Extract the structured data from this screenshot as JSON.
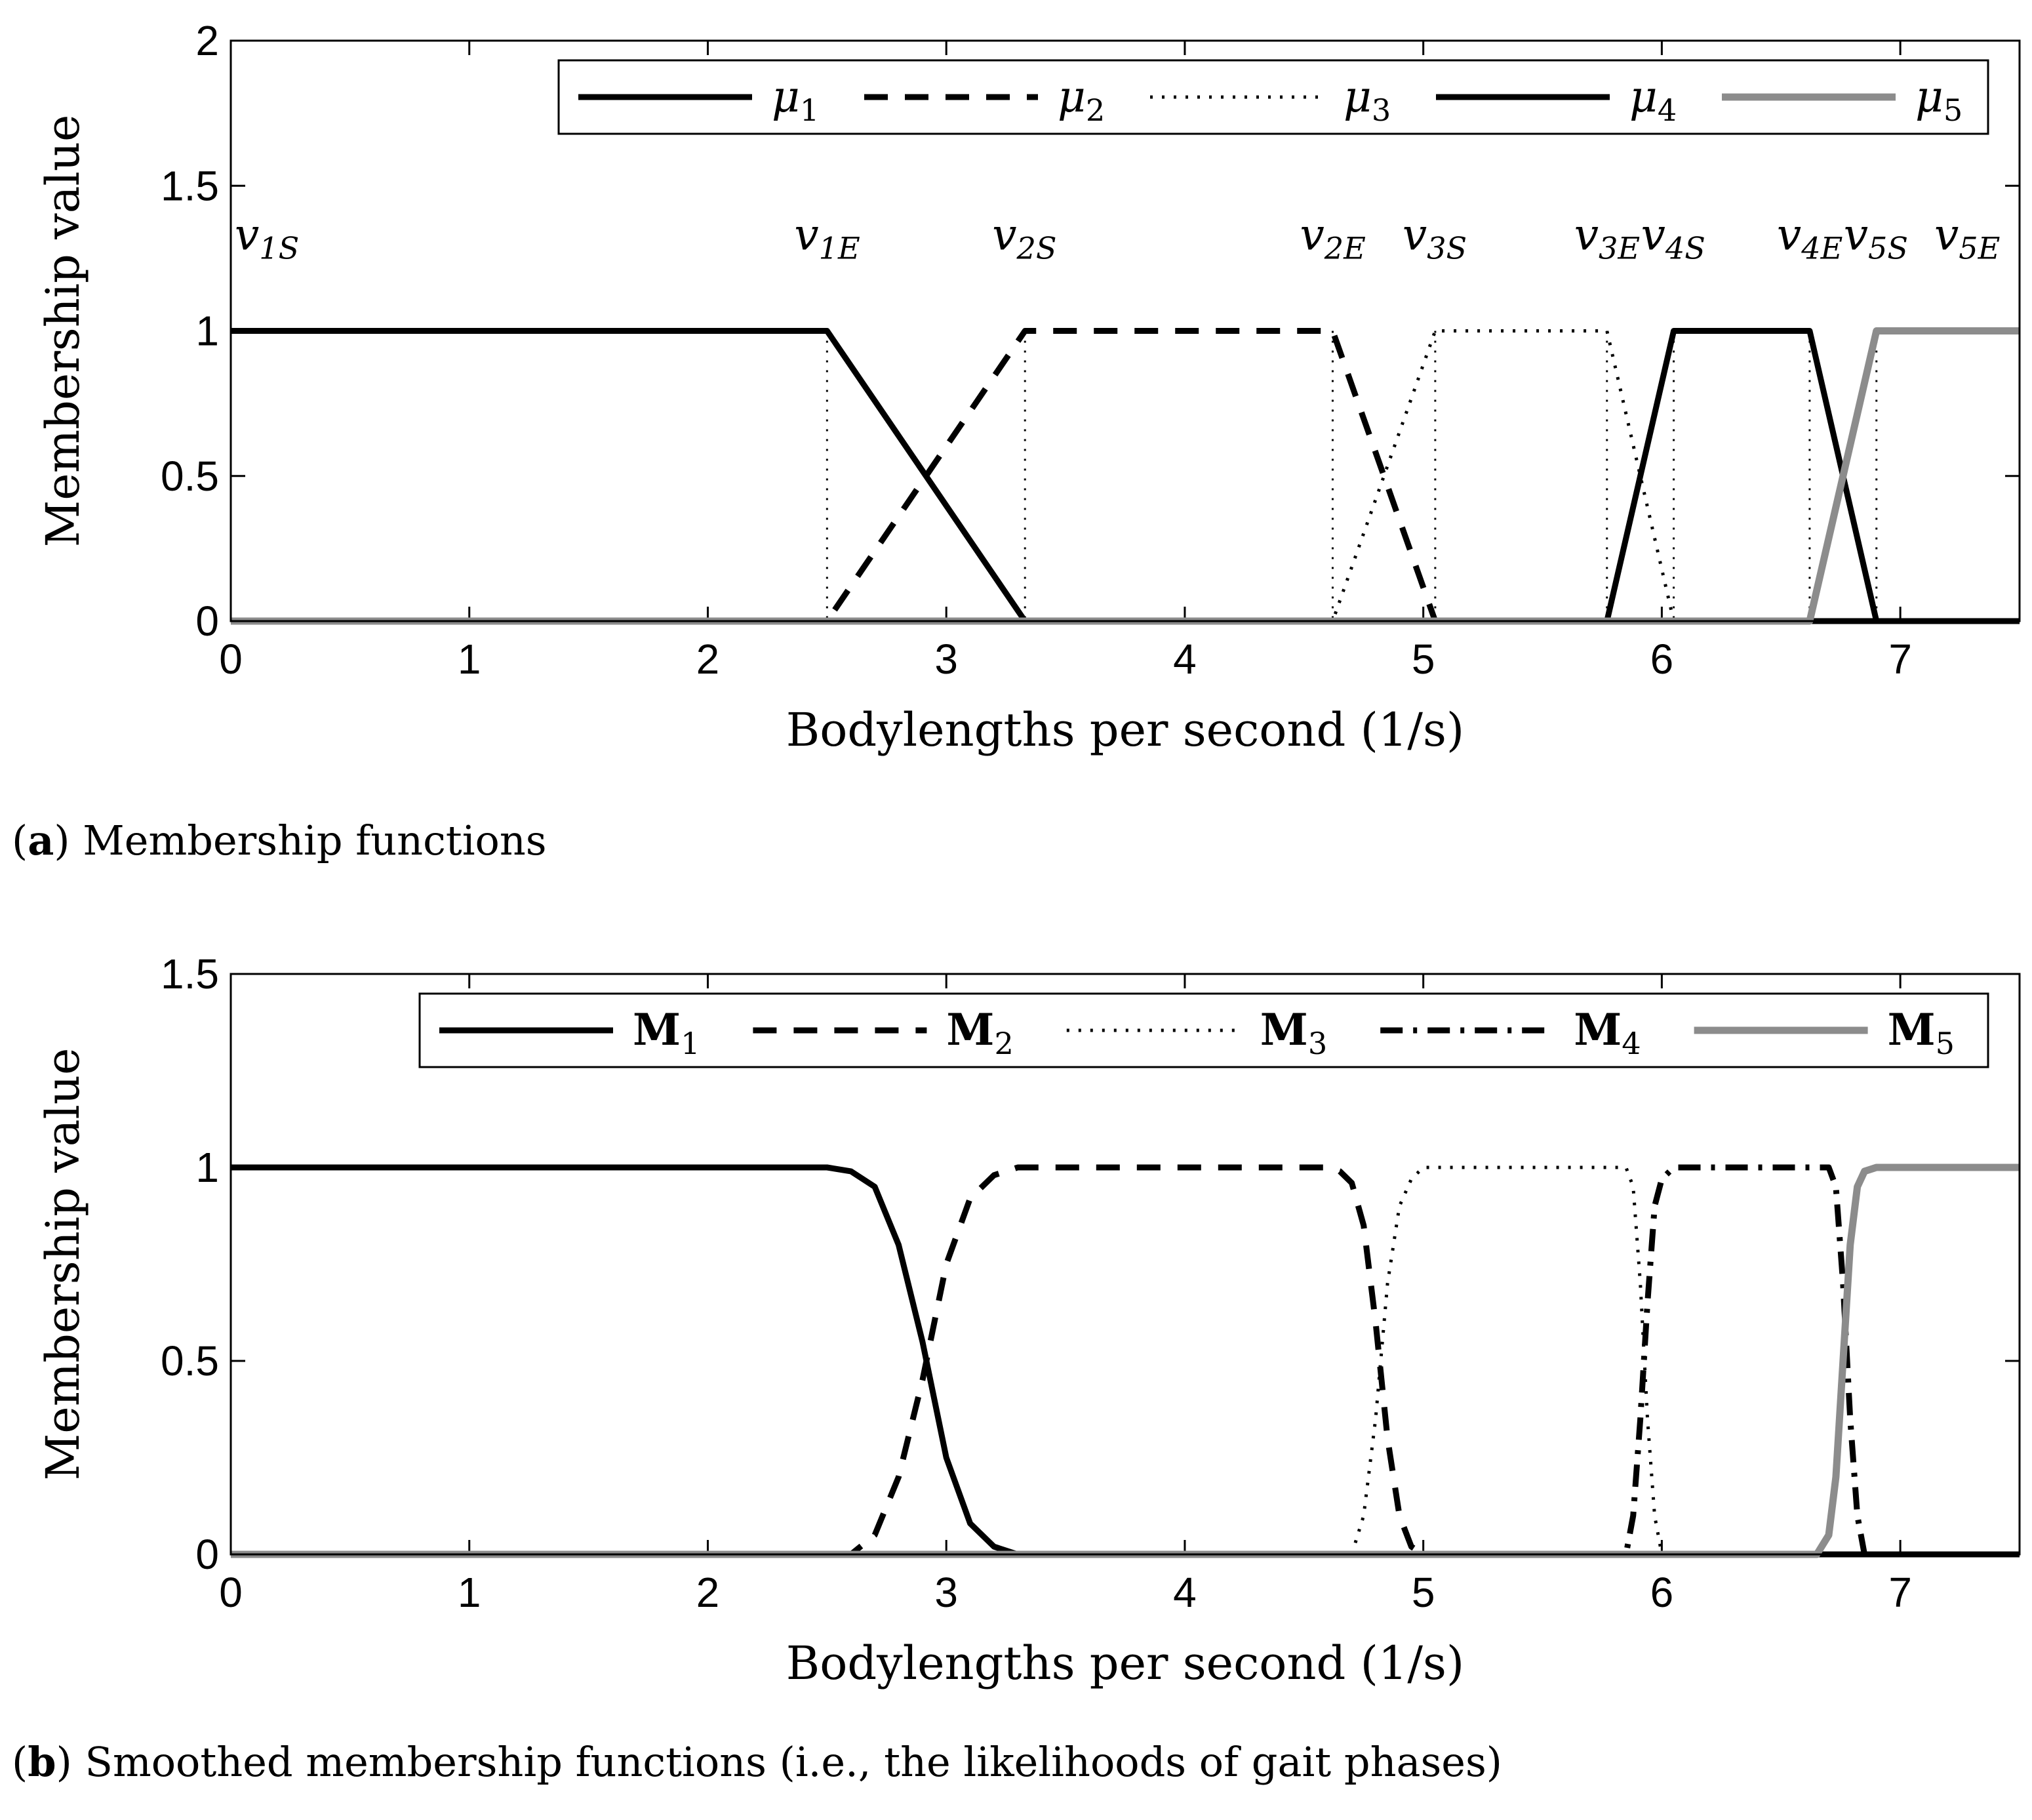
{
  "captions": {
    "a_letter": "a",
    "a_text": "Membership functions",
    "b_letter": "b",
    "b_text": "Smoothed membership functions (i.e., the likelihoods of gait phases)"
  },
  "colors": {
    "black": "#000000",
    "gray": "#8c8c8c"
  },
  "chart_data": [
    {
      "type": "line",
      "title": "",
      "xlabel": "Bodylengths per second (1/s)",
      "ylabel": "Membership value",
      "xlim": [
        0,
        7.5
      ],
      "ylim": [
        0,
        2
      ],
      "xticks": [
        0,
        1,
        2,
        3,
        4,
        5,
        6,
        7
      ],
      "yticks": [
        0,
        0.5,
        1,
        1.5,
        2
      ],
      "ytick_labels": [
        "0",
        "0.5",
        "1",
        "1.5",
        "2"
      ],
      "legend_position": "top-right",
      "markers": [
        {
          "x": 0,
          "label": "v",
          "sub": "1S",
          "line": false
        },
        {
          "x": 2.5,
          "label": "v",
          "sub": "1E",
          "line": true
        },
        {
          "x": 3.33,
          "label": "v",
          "sub": "2S",
          "line": true
        },
        {
          "x": 4.62,
          "label": "v",
          "sub": "2E",
          "line": true
        },
        {
          "x": 5.05,
          "label": "v",
          "sub": "3S",
          "line": true
        },
        {
          "x": 5.77,
          "label": "v",
          "sub": "3E",
          "line": true
        },
        {
          "x": 6.05,
          "label": "v",
          "sub": "4S",
          "line": true
        },
        {
          "x": 6.62,
          "label": "v",
          "sub": "4E",
          "line": true
        },
        {
          "x": 6.9,
          "label": "v",
          "sub": "5S",
          "line": true
        },
        {
          "x": 7.5,
          "label": "v",
          "sub": "5E",
          "line": false
        }
      ],
      "series": [
        {
          "name": "μ",
          "sub": "1",
          "style": "solid",
          "color": "#000000",
          "x": [
            0,
            2.5,
            3.33,
            7.5
          ],
          "y": [
            1,
            1,
            0,
            0
          ]
        },
        {
          "name": "μ",
          "sub": "2",
          "style": "dashed",
          "color": "#000000",
          "x": [
            0,
            2.5,
            3.33,
            4.62,
            5.05,
            7.5
          ],
          "y": [
            0,
            0,
            1,
            1,
            0,
            0
          ]
        },
        {
          "name": "μ",
          "sub": "3",
          "style": "dotted",
          "color": "#000000",
          "x": [
            0,
            4.62,
            5.05,
            5.77,
            6.05,
            7.5
          ],
          "y": [
            0,
            0,
            1,
            1,
            0,
            0
          ]
        },
        {
          "name": "μ",
          "sub": "4",
          "style": "solid",
          "color": "#000000",
          "x": [
            0,
            5.77,
            6.05,
            6.62,
            6.9,
            7.5
          ],
          "y": [
            0,
            0,
            1,
            1,
            0,
            0
          ]
        },
        {
          "name": "μ",
          "sub": "5",
          "style": "solid-gray",
          "color": "#8c8c8c",
          "x": [
            0,
            6.62,
            6.9,
            7.5
          ],
          "y": [
            0,
            0,
            1,
            1
          ]
        }
      ]
    },
    {
      "type": "line",
      "title": "",
      "xlabel": "Bodylengths per second (1/s)",
      "ylabel": "Membership value",
      "xlim": [
        0,
        7.5
      ],
      "ylim": [
        0,
        1.5
      ],
      "xticks": [
        0,
        1,
        2,
        3,
        4,
        5,
        6,
        7
      ],
      "yticks": [
        0,
        0.5,
        1,
        1.5
      ],
      "ytick_labels": [
        "0",
        "0.5",
        "1",
        "1.5"
      ],
      "legend_position": "top-right",
      "series": [
        {
          "name": "M",
          "sub": "1",
          "style": "solid",
          "color": "#000000",
          "x": [
            0,
            2.5,
            2.6,
            2.7,
            2.8,
            2.9,
            3.0,
            3.1,
            3.2,
            3.3,
            3.4,
            7.5
          ],
          "y": [
            1,
            1,
            0.99,
            0.95,
            0.8,
            0.55,
            0.25,
            0.08,
            0.02,
            0,
            0,
            0
          ]
        },
        {
          "name": "M",
          "sub": "2",
          "style": "dashed",
          "color": "#000000",
          "x": [
            0,
            2.6,
            2.7,
            2.8,
            2.9,
            3.0,
            3.1,
            3.2,
            3.3,
            3.4,
            4.6,
            4.65,
            4.7,
            4.75,
            4.8,
            4.85,
            4.9,
            4.95,
            5.0,
            7.5
          ],
          "y": [
            0,
            0,
            0.05,
            0.2,
            0.45,
            0.75,
            0.92,
            0.98,
            1,
            1,
            1,
            0.99,
            0.96,
            0.85,
            0.6,
            0.3,
            0.1,
            0.02,
            0,
            0
          ]
        },
        {
          "name": "M",
          "sub": "3",
          "style": "dotted",
          "color": "#000000",
          "x": [
            0,
            4.7,
            4.75,
            4.8,
            4.85,
            4.9,
            4.95,
            5.0,
            5.1,
            5.85,
            5.88,
            5.91,
            5.94,
            5.97,
            6.0,
            7.5
          ],
          "y": [
            0,
            0,
            0.1,
            0.35,
            0.7,
            0.9,
            0.97,
            1,
            1,
            1,
            0.95,
            0.7,
            0.35,
            0.1,
            0,
            0
          ]
        },
        {
          "name": "M",
          "sub": "4",
          "style": "dashdot",
          "color": "#000000",
          "x": [
            0,
            5.85,
            5.88,
            5.91,
            5.94,
            5.97,
            6.0,
            6.05,
            6.7,
            6.73,
            6.76,
            6.79,
            6.82,
            6.85,
            7.5
          ],
          "y": [
            0,
            0,
            0.1,
            0.35,
            0.65,
            0.9,
            0.97,
            1,
            1,
            0.95,
            0.7,
            0.35,
            0.1,
            0,
            0
          ]
        },
        {
          "name": "M",
          "sub": "5",
          "style": "solid-gray",
          "color": "#8c8c8c",
          "x": [
            0,
            6.65,
            6.7,
            6.73,
            6.76,
            6.79,
            6.82,
            6.85,
            6.9,
            7.5
          ],
          "y": [
            0,
            0,
            0.05,
            0.2,
            0.5,
            0.8,
            0.95,
            0.99,
            1,
            1
          ]
        }
      ]
    }
  ]
}
